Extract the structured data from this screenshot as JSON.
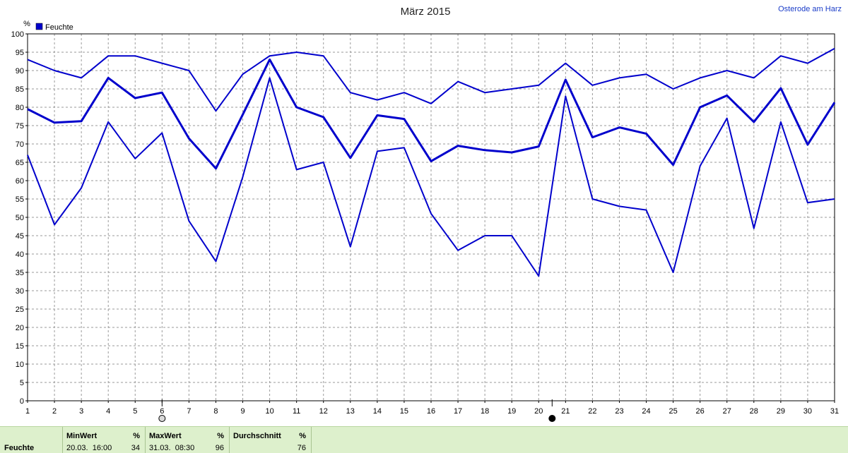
{
  "header": {
    "title": "März 2015",
    "station": "Osterode am Harz"
  },
  "legend": {
    "label": "Feuchte",
    "color": "#0000cc"
  },
  "chart_data": {
    "type": "line",
    "title": "März 2015",
    "ylabel": "%",
    "xlabel": "",
    "ylim": [
      0,
      100
    ],
    "yticks": [
      0,
      5,
      10,
      15,
      20,
      25,
      30,
      35,
      40,
      45,
      50,
      55,
      60,
      65,
      70,
      75,
      80,
      85,
      90,
      95,
      100
    ],
    "x": [
      1,
      2,
      3,
      4,
      5,
      6,
      7,
      8,
      9,
      10,
      11,
      12,
      13,
      14,
      15,
      16,
      17,
      18,
      19,
      20,
      21,
      22,
      23,
      24,
      25,
      26,
      27,
      28,
      29,
      30,
      31
    ],
    "xticks": [
      "1",
      "2",
      "3",
      "4",
      "5",
      "6",
      "7",
      "8",
      "9",
      "10",
      "11",
      "12",
      "13",
      "14",
      "15",
      "16",
      "17",
      "18",
      "19",
      "20",
      "21",
      "22",
      "23",
      "24",
      "25",
      "26",
      "27",
      "28",
      "29",
      "30",
      "31"
    ],
    "grid": true,
    "legend_position": "top-left",
    "series": [
      {
        "name": "Feuchte",
        "role": "max",
        "color": "#0000cc",
        "values": [
          93,
          90,
          88,
          94,
          94,
          92,
          90,
          79,
          89,
          94,
          95,
          94,
          84,
          82,
          84,
          81,
          87,
          84,
          85,
          86,
          92,
          86,
          88,
          89,
          85,
          88,
          90,
          88,
          94,
          92,
          96
        ]
      },
      {
        "name": "Feuchte",
        "role": "average",
        "color": "#0000cc",
        "values": [
          79.5,
          75.8,
          76.2,
          88,
          82.5,
          84,
          71.5,
          63.3,
          78,
          93,
          80,
          77.3,
          66.2,
          77.8,
          76.8,
          65.3,
          69.5,
          68.3,
          67.7,
          69.3,
          87.5,
          71.8,
          74.5,
          72.8,
          64.3,
          80,
          83.2,
          76,
          85.2,
          69.8,
          81.3
        ]
      },
      {
        "name": "Feuchte",
        "role": "min",
        "color": "#0000cc",
        "values": [
          67,
          48,
          58,
          76,
          66,
          73,
          49,
          38,
          61,
          88,
          63,
          65,
          42,
          68,
          69,
          51,
          41,
          45,
          45,
          34,
          83,
          55,
          53,
          52,
          35,
          64,
          77,
          47,
          76,
          54,
          55
        ]
      }
    ],
    "markers": [
      {
        "day": 6,
        "symbol": "open-circle"
      },
      {
        "day": 20.5,
        "symbol": "filled-circle"
      }
    ]
  },
  "stats": {
    "row_label": "Feuchte",
    "min": {
      "header": "MinWert",
      "unit": "%",
      "time": "20.03.  16:00",
      "value": "34"
    },
    "max": {
      "header": "MaxWert",
      "unit": "%",
      "time": "31.03.  08:30",
      "value": "96"
    },
    "avg": {
      "header": "Durchschnitt",
      "unit": "%",
      "value": "76"
    }
  }
}
